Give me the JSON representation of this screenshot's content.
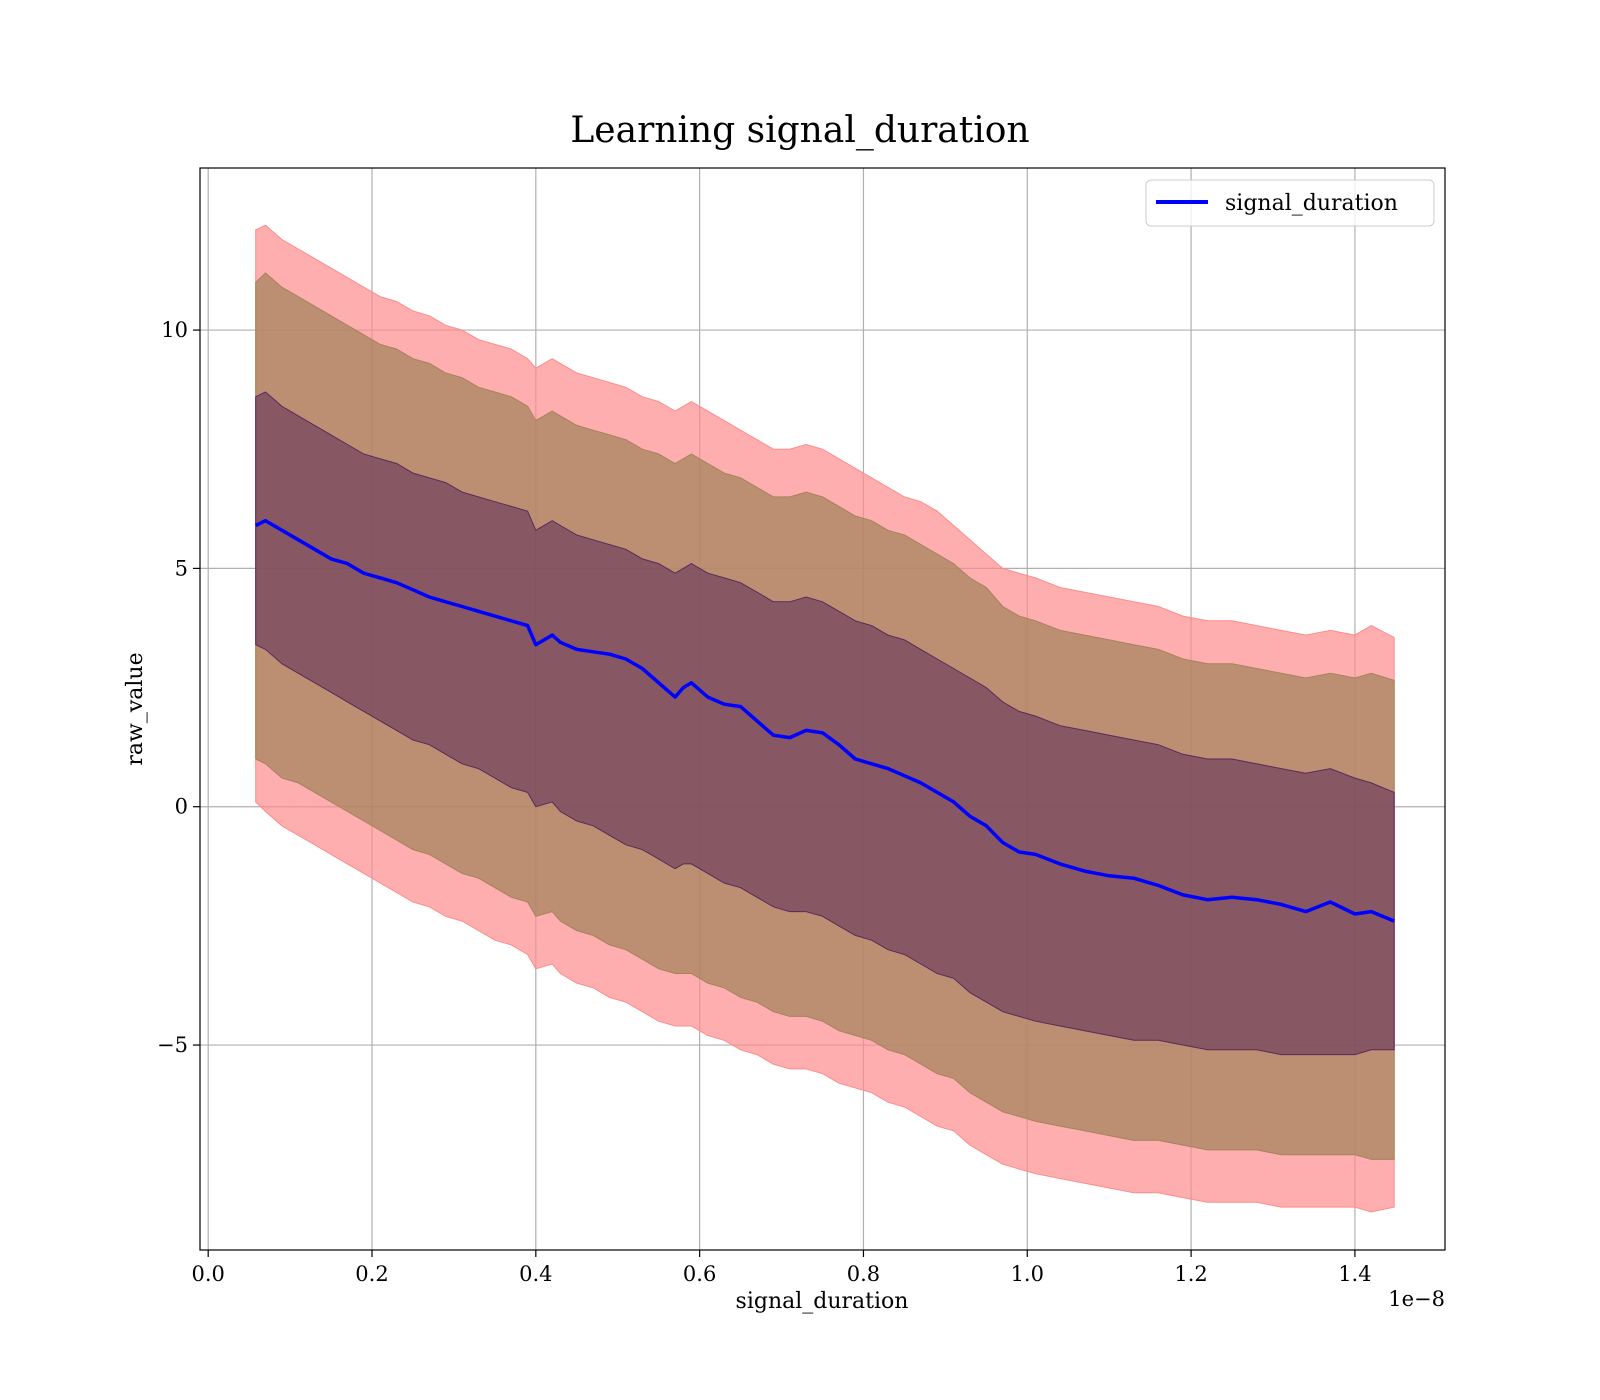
{
  "chart_data": {
    "type": "line",
    "title": "Learning signal_duration",
    "xlabel": "signal_duration",
    "ylabel": "raw_value",
    "x_offset_label": "1e−8",
    "xlim": [
      -0.01,
      1.51
    ],
    "ylim": [
      -9.3,
      13.4
    ],
    "xticks": [
      0.0,
      0.2,
      0.4,
      0.6,
      0.8,
      1.0,
      1.2,
      1.4
    ],
    "xtick_labels": [
      "0.0",
      "0.2",
      "0.4",
      "0.6",
      "0.8",
      "1.0",
      "1.2",
      "1.4"
    ],
    "yticks": [
      -5,
      0,
      5,
      10
    ],
    "ytick_labels": [
      "−5",
      "0",
      "5",
      "10"
    ],
    "grid": true,
    "legend": {
      "position": "top-right",
      "entries": [
        "signal_duration"
      ]
    },
    "series": [
      {
        "name": "signal_duration",
        "color": "#0000ff",
        "x": [
          0.058,
          0.07,
          0.09,
          0.11,
          0.13,
          0.15,
          0.17,
          0.19,
          0.21,
          0.23,
          0.25,
          0.27,
          0.29,
          0.31,
          0.33,
          0.35,
          0.37,
          0.39,
          0.4,
          0.42,
          0.43,
          0.45,
          0.47,
          0.49,
          0.51,
          0.53,
          0.55,
          0.57,
          0.58,
          0.59,
          0.61,
          0.63,
          0.65,
          0.67,
          0.69,
          0.71,
          0.73,
          0.75,
          0.77,
          0.79,
          0.81,
          0.83,
          0.85,
          0.87,
          0.89,
          0.91,
          0.93,
          0.95,
          0.97,
          0.99,
          1.01,
          1.04,
          1.07,
          1.1,
          1.13,
          1.16,
          1.19,
          1.22,
          1.25,
          1.28,
          1.31,
          1.34,
          1.37,
          1.4,
          1.42,
          1.448
        ],
        "mean": [
          5.9,
          6.0,
          5.8,
          5.6,
          5.4,
          5.2,
          5.1,
          4.9,
          4.8,
          4.7,
          4.55,
          4.4,
          4.3,
          4.2,
          4.1,
          4.0,
          3.9,
          3.8,
          3.4,
          3.6,
          3.45,
          3.3,
          3.25,
          3.2,
          3.1,
          2.9,
          2.6,
          2.3,
          2.5,
          2.6,
          2.3,
          2.15,
          2.1,
          1.8,
          1.5,
          1.45,
          1.6,
          1.55,
          1.3,
          1.0,
          0.9,
          0.8,
          0.65,
          0.5,
          0.3,
          0.1,
          -0.2,
          -0.4,
          -0.75,
          -0.95,
          -1.0,
          -1.2,
          -1.35,
          -1.45,
          -1.5,
          -1.65,
          -1.85,
          -1.95,
          -1.9,
          -1.95,
          -2.05,
          -2.2,
          -2.0,
          -2.25,
          -2.2,
          -2.4
        ],
        "band_inner_upper": [
          8.6,
          8.7,
          8.4,
          8.2,
          8.0,
          7.8,
          7.6,
          7.4,
          7.3,
          7.2,
          7.0,
          6.9,
          6.8,
          6.6,
          6.5,
          6.4,
          6.3,
          6.2,
          5.8,
          6.0,
          5.9,
          5.7,
          5.6,
          5.5,
          5.4,
          5.2,
          5.1,
          4.9,
          5.0,
          5.1,
          4.9,
          4.8,
          4.7,
          4.5,
          4.3,
          4.3,
          4.4,
          4.3,
          4.1,
          3.9,
          3.8,
          3.6,
          3.5,
          3.3,
          3.1,
          2.9,
          2.7,
          2.5,
          2.2,
          2.0,
          1.9,
          1.7,
          1.6,
          1.5,
          1.4,
          1.3,
          1.1,
          1.0,
          1.0,
          0.9,
          0.8,
          0.7,
          0.8,
          0.6,
          0.5,
          0.3
        ],
        "band_inner_lower": [
          3.4,
          3.3,
          3.0,
          2.8,
          2.6,
          2.4,
          2.2,
          2.0,
          1.8,
          1.6,
          1.4,
          1.3,
          1.1,
          0.9,
          0.8,
          0.6,
          0.4,
          0.3,
          0.0,
          0.1,
          -0.1,
          -0.3,
          -0.4,
          -0.6,
          -0.8,
          -0.9,
          -1.1,
          -1.3,
          -1.2,
          -1.2,
          -1.4,
          -1.6,
          -1.7,
          -1.9,
          -2.1,
          -2.2,
          -2.2,
          -2.3,
          -2.5,
          -2.7,
          -2.8,
          -3.0,
          -3.1,
          -3.3,
          -3.5,
          -3.6,
          -3.9,
          -4.1,
          -4.3,
          -4.4,
          -4.5,
          -4.6,
          -4.7,
          -4.8,
          -4.9,
          -4.9,
          -5.0,
          -5.1,
          -5.1,
          -5.1,
          -5.2,
          -5.2,
          -5.2,
          -5.2,
          -5.1,
          -5.1
        ],
        "band_mid_upper": [
          11.0,
          11.2,
          10.9,
          10.7,
          10.5,
          10.3,
          10.1,
          9.9,
          9.7,
          9.6,
          9.4,
          9.3,
          9.1,
          9.0,
          8.8,
          8.7,
          8.6,
          8.4,
          8.1,
          8.3,
          8.2,
          8.0,
          7.9,
          7.8,
          7.7,
          7.5,
          7.4,
          7.2,
          7.3,
          7.4,
          7.2,
          7.0,
          6.9,
          6.7,
          6.5,
          6.5,
          6.6,
          6.5,
          6.3,
          6.1,
          6.0,
          5.8,
          5.7,
          5.5,
          5.3,
          5.1,
          4.8,
          4.6,
          4.2,
          4.0,
          3.9,
          3.7,
          3.6,
          3.5,
          3.4,
          3.3,
          3.1,
          3.0,
          3.0,
          2.9,
          2.8,
          2.7,
          2.8,
          2.7,
          2.8,
          2.65
        ],
        "band_mid_lower": [
          1.0,
          0.9,
          0.6,
          0.5,
          0.3,
          0.1,
          -0.1,
          -0.3,
          -0.5,
          -0.7,
          -0.9,
          -1.0,
          -1.2,
          -1.4,
          -1.5,
          -1.7,
          -1.9,
          -2.0,
          -2.3,
          -2.2,
          -2.4,
          -2.6,
          -2.7,
          -2.9,
          -3.0,
          -3.2,
          -3.4,
          -3.5,
          -3.5,
          -3.5,
          -3.7,
          -3.8,
          -4.0,
          -4.1,
          -4.3,
          -4.4,
          -4.4,
          -4.5,
          -4.7,
          -4.8,
          -4.9,
          -5.1,
          -5.2,
          -5.4,
          -5.6,
          -5.7,
          -6.0,
          -6.2,
          -6.4,
          -6.5,
          -6.6,
          -6.7,
          -6.8,
          -6.9,
          -7.0,
          -7.0,
          -7.1,
          -7.2,
          -7.2,
          -7.2,
          -7.3,
          -7.3,
          -7.3,
          -7.3,
          -7.4,
          -7.4
        ],
        "band_outer_upper": [
          12.1,
          12.2,
          11.9,
          11.7,
          11.5,
          11.3,
          11.1,
          10.9,
          10.7,
          10.6,
          10.4,
          10.3,
          10.1,
          10.0,
          9.8,
          9.7,
          9.6,
          9.4,
          9.2,
          9.4,
          9.3,
          9.1,
          9.0,
          8.9,
          8.8,
          8.6,
          8.5,
          8.3,
          8.4,
          8.5,
          8.3,
          8.1,
          7.9,
          7.7,
          7.5,
          7.5,
          7.6,
          7.5,
          7.3,
          7.1,
          6.9,
          6.7,
          6.5,
          6.4,
          6.2,
          5.9,
          5.6,
          5.3,
          5.0,
          4.9,
          4.8,
          4.6,
          4.5,
          4.4,
          4.3,
          4.2,
          4.0,
          3.9,
          3.9,
          3.8,
          3.7,
          3.6,
          3.7,
          3.6,
          3.8,
          3.55
        ],
        "band_outer_lower": [
          0.1,
          -0.1,
          -0.4,
          -0.6,
          -0.8,
          -1.0,
          -1.2,
          -1.4,
          -1.6,
          -1.8,
          -2.0,
          -2.1,
          -2.3,
          -2.4,
          -2.6,
          -2.8,
          -2.9,
          -3.1,
          -3.4,
          -3.3,
          -3.5,
          -3.7,
          -3.8,
          -4.0,
          -4.1,
          -4.3,
          -4.5,
          -4.6,
          -4.6,
          -4.6,
          -4.8,
          -4.9,
          -5.1,
          -5.2,
          -5.4,
          -5.5,
          -5.5,
          -5.6,
          -5.8,
          -5.9,
          -6.0,
          -6.2,
          -6.3,
          -6.5,
          -6.7,
          -6.8,
          -7.1,
          -7.3,
          -7.5,
          -7.6,
          -7.7,
          -7.8,
          -7.9,
          -8.0,
          -8.1,
          -8.1,
          -8.2,
          -8.3,
          -8.3,
          -8.3,
          -8.4,
          -8.4,
          -8.4,
          -8.4,
          -8.5,
          -8.4
        ]
      }
    ],
    "colors": {
      "line": "#0000ff",
      "band_outer": "#fd8c8c",
      "band_mid": "#a6835e",
      "band_inner": "#5b2a5a",
      "grid": "#b0b0b0"
    }
  }
}
